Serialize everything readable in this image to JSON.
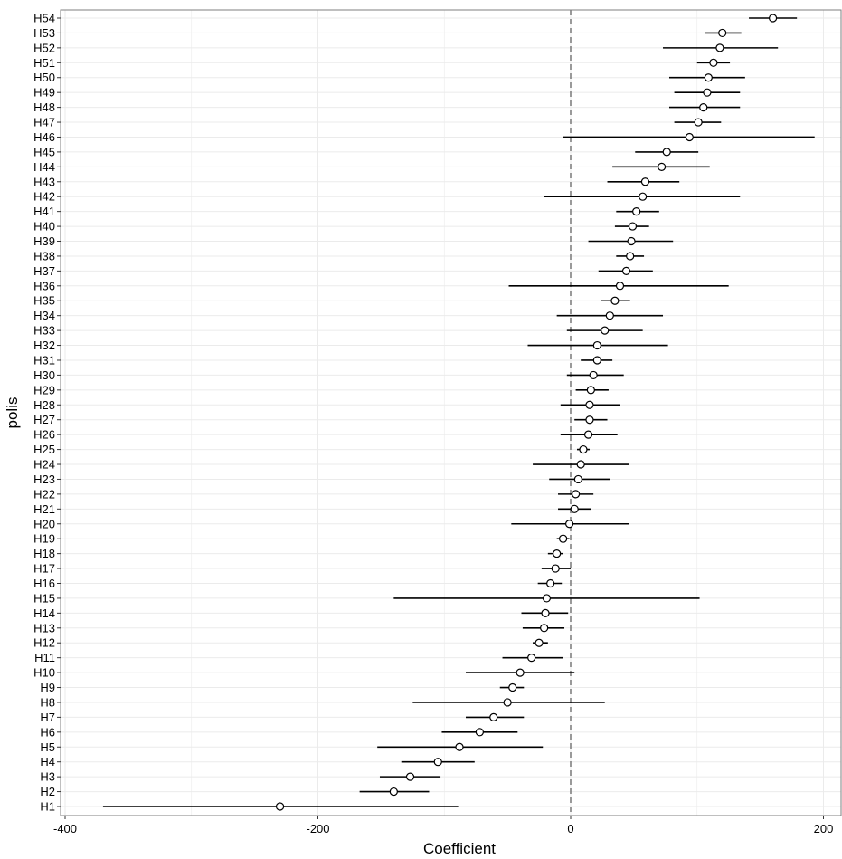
{
  "chart_data": {
    "type": "scatter",
    "title": "",
    "xlabel": "Coefficient",
    "ylabel": "polis",
    "xlim": [
      -400,
      215
    ],
    "xticks": [
      -400,
      -200,
      0,
      200
    ],
    "xtick_labels": [
      "-400",
      "-200",
      "0",
      "200"
    ],
    "reference_line": {
      "x": 0,
      "style": "dashed"
    },
    "grid": true,
    "legend": "none",
    "colors": {
      "line": "#000000",
      "point_fill": "#ffffff",
      "grid": "#ebebeb",
      "reference": "#808080",
      "border": "#7f7f7f"
    },
    "categories": [
      "H1",
      "H2",
      "H3",
      "H4",
      "H5",
      "H6",
      "H7",
      "H8",
      "H9",
      "H10",
      "H11",
      "H12",
      "H13",
      "H14",
      "H15",
      "H16",
      "H17",
      "H18",
      "H19",
      "H20",
      "H21",
      "H22",
      "H23",
      "H24",
      "H25",
      "H26",
      "H27",
      "H28",
      "H29",
      "H30",
      "H31",
      "H32",
      "H33",
      "H34",
      "H35",
      "H36",
      "H37",
      "H38",
      "H39",
      "H40",
      "H41",
      "H42",
      "H43",
      "H44",
      "H45",
      "H46",
      "H47",
      "H48",
      "H49",
      "H50",
      "H51",
      "H52",
      "H53",
      "H54"
    ],
    "series": [
      {
        "estimate": [
          -230,
          -140,
          -127,
          -105,
          -88,
          -72,
          -61,
          -50,
          -46,
          -40,
          -31,
          -25,
          -21,
          -20,
          -19,
          -16,
          -12,
          -11,
          -6,
          -1,
          3,
          4,
          6,
          8,
          10,
          14,
          15,
          15,
          16,
          18,
          21,
          21,
          27,
          31,
          35,
          39,
          44,
          47,
          48,
          49,
          52,
          57,
          59,
          72,
          76,
          94,
          101,
          105,
          108,
          109,
          113,
          118,
          120,
          160
        ],
        "lower": [
          -370,
          -167,
          -151,
          -134,
          -153,
          -102,
          -83,
          -125,
          -56,
          -83,
          -54,
          -30,
          -38,
          -39,
          -140,
          -26,
          -23,
          -18,
          -11,
          -47,
          -10,
          -10,
          -17,
          -30,
          5,
          -8,
          3,
          -8,
          4,
          -3,
          8,
          -34,
          -3,
          -11,
          24,
          -49,
          22,
          36,
          14,
          35,
          36,
          -21,
          29,
          33,
          51,
          -6,
          82,
          78,
          82,
          78,
          100,
          73,
          106,
          141
        ],
        "upper": [
          -89,
          -112,
          -103,
          -76,
          -22,
          -42,
          -37,
          27,
          -37,
          3,
          -6,
          -18,
          -5,
          -2,
          102,
          -7,
          0,
          -6,
          -1,
          46,
          16,
          18,
          31,
          46,
          15,
          37,
          29,
          39,
          30,
          42,
          33,
          77,
          57,
          73,
          47,
          125,
          65,
          58,
          81,
          62,
          70,
          134,
          86,
          110,
          101,
          193,
          119,
          134,
          134,
          138,
          126,
          164,
          135,
          179
        ]
      }
    ]
  }
}
